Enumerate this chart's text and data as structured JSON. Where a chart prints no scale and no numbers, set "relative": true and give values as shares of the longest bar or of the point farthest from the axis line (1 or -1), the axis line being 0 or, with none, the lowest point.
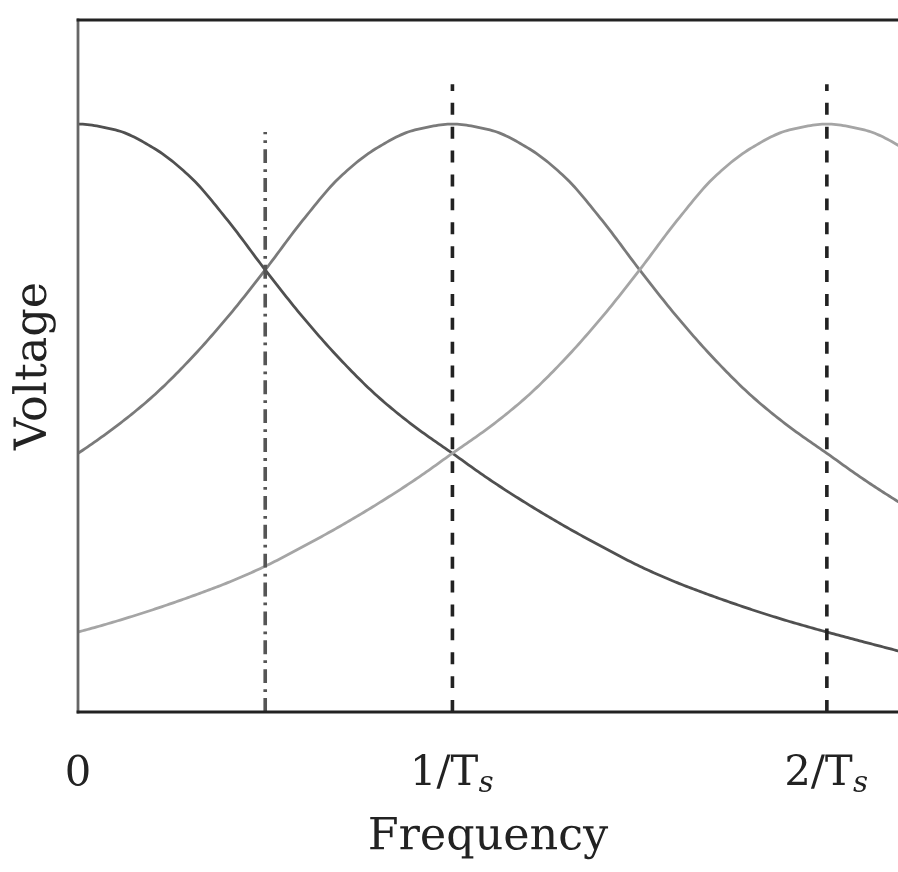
{
  "chart_data": {
    "type": "line",
    "relative": true,
    "xlabel": "Frequency",
    "ylabel": "Voltage",
    "xlim": [
      0,
      2.19
    ],
    "xticks": [
      {
        "value": 0,
        "label": "0"
      },
      {
        "value": 1,
        "label": "1/T$_{s}$"
      },
      {
        "value": 2,
        "label": "2/T$_{s}$"
      }
    ],
    "x": [
      0,
      0.1,
      0.2,
      0.3,
      0.4,
      0.5,
      0.6,
      0.7,
      0.8,
      0.9,
      1.0,
      1.1,
      1.2,
      1.3,
      1.4,
      1.5,
      1.6,
      1.7,
      1.8,
      1.9,
      2.0,
      2.1,
      2.19
    ],
    "series": [
      {
        "color": "#505050",
        "values": [
          1.0,
          0.99,
          0.96,
          0.91,
          0.836,
          0.752,
          0.672,
          0.6,
          0.537,
          0.485,
          0.44,
          0.395,
          0.354,
          0.316,
          0.281,
          0.248,
          0.22,
          0.196,
          0.174,
          0.154,
          0.136,
          0.119,
          0.104
        ]
      },
      {
        "color": "#7a7a7a",
        "values": [
          0.44,
          0.485,
          0.537,
          0.6,
          0.672,
          0.752,
          0.836,
          0.91,
          0.96,
          0.99,
          1.0,
          0.99,
          0.96,
          0.91,
          0.836,
          0.752,
          0.672,
          0.6,
          0.537,
          0.485,
          0.44,
          0.395,
          0.358
        ]
      },
      {
        "color": "#a5a5a5",
        "values": [
          0.136,
          0.154,
          0.174,
          0.196,
          0.22,
          0.248,
          0.281,
          0.316,
          0.354,
          0.395,
          0.44,
          0.485,
          0.537,
          0.6,
          0.672,
          0.752,
          0.836,
          0.91,
          0.96,
          0.99,
          1.0,
          0.99,
          0.964
        ]
      }
    ],
    "ref_lines": [
      {
        "axis": "x",
        "value": 0.5,
        "color": "#555555",
        "line_style": "dashdot"
      },
      {
        "axis": "x",
        "value": 1,
        "color": "#222222",
        "line_style": "dashed"
      },
      {
        "axis": "x",
        "value": 2,
        "color": "#222222",
        "line_style": "dashed"
      }
    ]
  }
}
